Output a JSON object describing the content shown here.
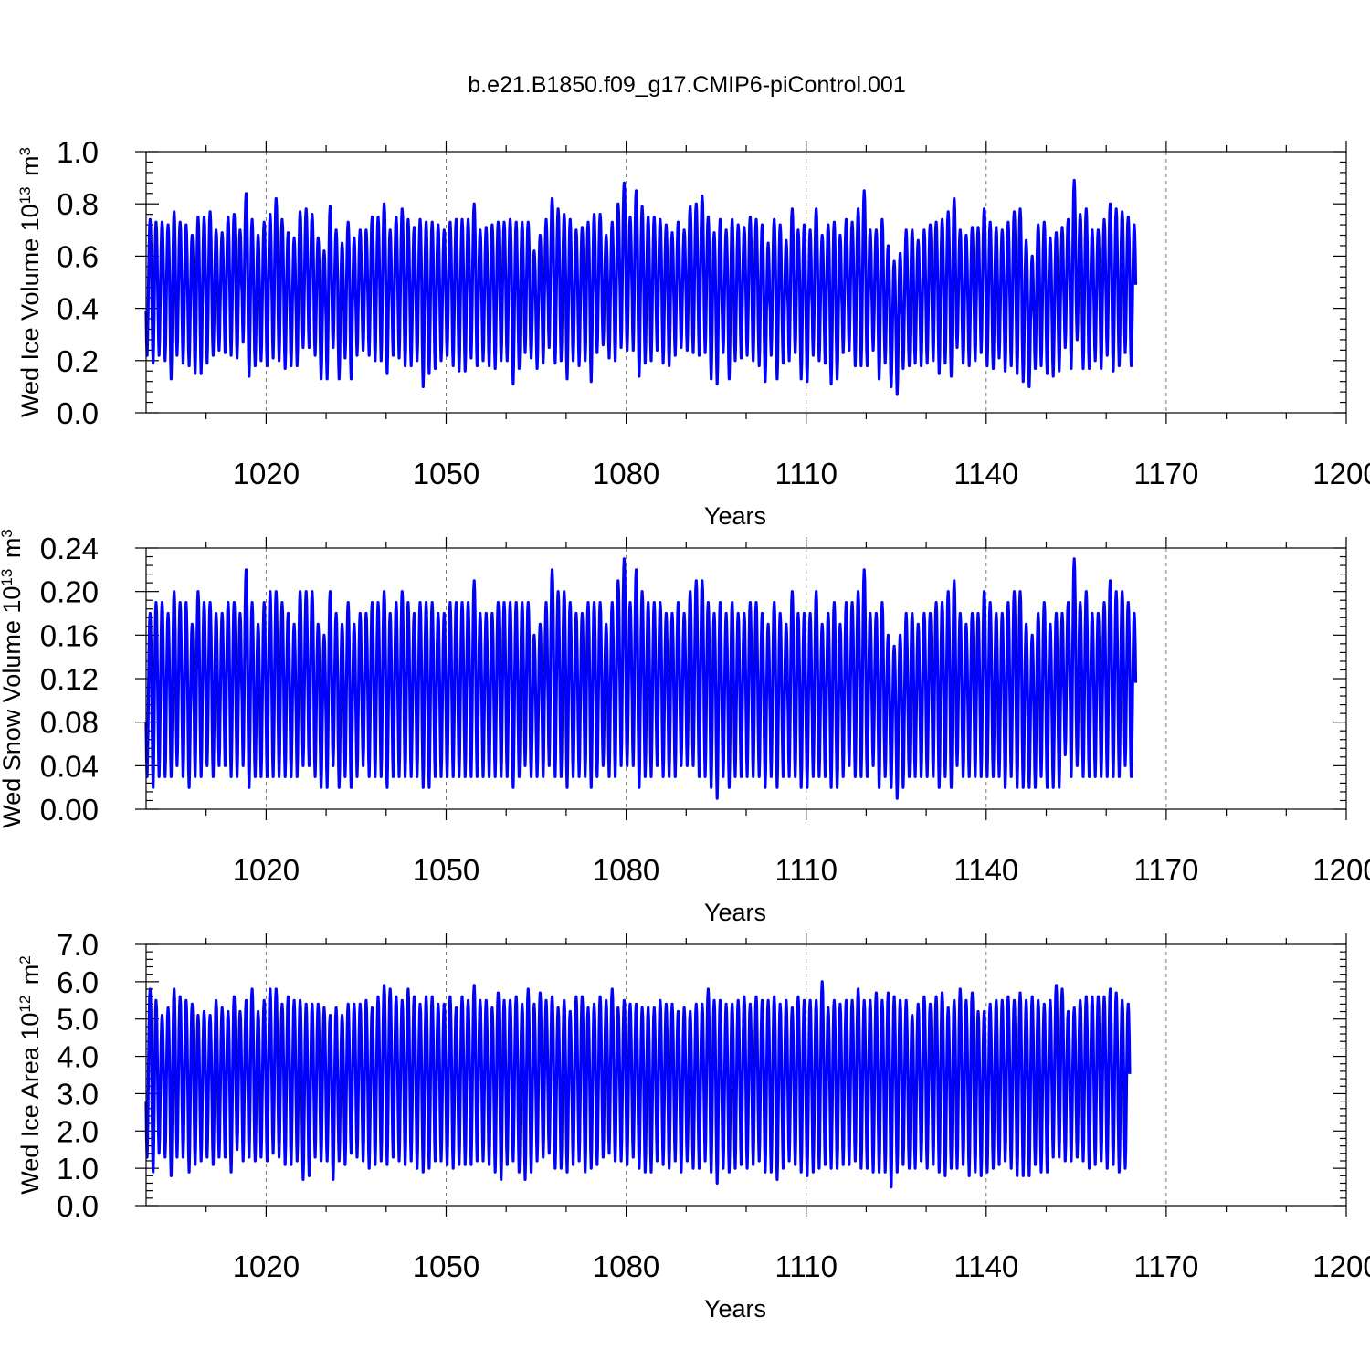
{
  "figure_title": "b.e21.B1850.f09_g17.CMIP6-piControl.001",
  "colors": {
    "series": "#0000ff",
    "frame": "#000000",
    "grid": "#777777"
  },
  "chart_data": [
    {
      "type": "line",
      "xlabel": "Years",
      "ylabel": {
        "text": "Wed Ice Volume 10",
        "sup": "13",
        "unit": " m",
        "unit_sup": "3"
      },
      "xlim": [
        1000,
        1200
      ],
      "ylim": [
        0.0,
        1.0
      ],
      "xticks": [
        1020,
        1050,
        1080,
        1110,
        1140,
        1170,
        1200
      ],
      "yticks": [
        "0.0",
        "0.2",
        "0.4",
        "0.6",
        "0.8",
        "1.0"
      ],
      "grid": "vertical dashed at x ticks",
      "series": [
        {
          "sampling": "monthly",
          "x_start": 1000,
          "annual_max": [
            0.74,
            0.73,
            0.73,
            0.72,
            0.77,
            0.73,
            0.72,
            0.68,
            0.75,
            0.75,
            0.77,
            0.7,
            0.69,
            0.75,
            0.76,
            0.7,
            0.84,
            0.74,
            0.68,
            0.73,
            0.76,
            0.82,
            0.74,
            0.69,
            0.67,
            0.77,
            0.78,
            0.76,
            0.67,
            0.62,
            0.79,
            0.7,
            0.65,
            0.73,
            0.67,
            0.7,
            0.7,
            0.75,
            0.75,
            0.8,
            0.7,
            0.75,
            0.78,
            0.74,
            0.71,
            0.74,
            0.73,
            0.73,
            0.72,
            0.7,
            0.73,
            0.74,
            0.74,
            0.74,
            0.8,
            0.7,
            0.71,
            0.72,
            0.73,
            0.73,
            0.74,
            0.73,
            0.73,
            0.73,
            0.62,
            0.68,
            0.74,
            0.82,
            0.78,
            0.76,
            0.74,
            0.7,
            0.71,
            0.73,
            0.76,
            0.76,
            0.68,
            0.73,
            0.8,
            0.88,
            0.75,
            0.85,
            0.79,
            0.75,
            0.75,
            0.74,
            0.72,
            0.69,
            0.73,
            0.7,
            0.79,
            0.8,
            0.83,
            0.75,
            0.69,
            0.74,
            0.7,
            0.74,
            0.72,
            0.71,
            0.75,
            0.74,
            0.72,
            0.65,
            0.74,
            0.72,
            0.66,
            0.78,
            0.7,
            0.72,
            0.7,
            0.78,
            0.68,
            0.72,
            0.73,
            0.68,
            0.74,
            0.73,
            0.78,
            0.85,
            0.7,
            0.7,
            0.74,
            0.64,
            0.58,
            0.61,
            0.7,
            0.7,
            0.66,
            0.7,
            0.72,
            0.73,
            0.74,
            0.77,
            0.82,
            0.7,
            0.68,
            0.71,
            0.71,
            0.78,
            0.73,
            0.71,
            0.7,
            0.73,
            0.77,
            0.78,
            0.66,
            0.6,
            0.72,
            0.73,
            0.67,
            0.69,
            0.71,
            0.74,
            0.89,
            0.76,
            0.78,
            0.7,
            0.7,
            0.74,
            0.8,
            0.78,
            0.77,
            0.75,
            0.72,
            0.7
          ],
          "annual_min": [
            0.22,
            0.19,
            0.22,
            0.2,
            0.13,
            0.22,
            0.19,
            0.18,
            0.15,
            0.15,
            0.19,
            0.22,
            0.24,
            0.23,
            0.22,
            0.21,
            0.27,
            0.14,
            0.18,
            0.2,
            0.18,
            0.21,
            0.2,
            0.17,
            0.18,
            0.18,
            0.25,
            0.25,
            0.22,
            0.13,
            0.13,
            0.25,
            0.13,
            0.21,
            0.13,
            0.22,
            0.24,
            0.22,
            0.2,
            0.2,
            0.15,
            0.22,
            0.21,
            0.18,
            0.18,
            0.2,
            0.1,
            0.15,
            0.17,
            0.2,
            0.22,
            0.18,
            0.16,
            0.16,
            0.21,
            0.18,
            0.2,
            0.18,
            0.17,
            0.2,
            0.2,
            0.11,
            0.17,
            0.23,
            0.21,
            0.17,
            0.19,
            0.25,
            0.19,
            0.2,
            0.13,
            0.2,
            0.18,
            0.2,
            0.12,
            0.23,
            0.26,
            0.21,
            0.2,
            0.25,
            0.24,
            0.24,
            0.14,
            0.19,
            0.2,
            0.24,
            0.19,
            0.18,
            0.22,
            0.25,
            0.24,
            0.23,
            0.22,
            0.23,
            0.13,
            0.11,
            0.23,
            0.13,
            0.2,
            0.21,
            0.22,
            0.2,
            0.18,
            0.12,
            0.22,
            0.13,
            0.19,
            0.2,
            0.23,
            0.13,
            0.12,
            0.22,
            0.2,
            0.19,
            0.11,
            0.13,
            0.23,
            0.24,
            0.18,
            0.18,
            0.18,
            0.24,
            0.13,
            0.19,
            0.1,
            0.07,
            0.17,
            0.18,
            0.19,
            0.18,
            0.19,
            0.2,
            0.15,
            0.19,
            0.14,
            0.25,
            0.19,
            0.18,
            0.2,
            0.23,
            0.18,
            0.17,
            0.21,
            0.16,
            0.18,
            0.15,
            0.12,
            0.1,
            0.17,
            0.18,
            0.15,
            0.14,
            0.16,
            0.25,
            0.17,
            0.28,
            0.17,
            0.17,
            0.2,
            0.17,
            0.22,
            0.16,
            0.18,
            0.23,
            0.18
          ]
        }
      ]
    },
    {
      "type": "line",
      "xlabel": "Years",
      "ylabel": {
        "text": "Wed Snow Volume 10",
        "sup": "13",
        "unit": " m",
        "unit_sup": "3"
      },
      "xlim": [
        1000,
        1200
      ],
      "ylim": [
        0.0,
        0.24
      ],
      "xticks": [
        1020,
        1050,
        1080,
        1110,
        1140,
        1170,
        1200
      ],
      "yticks": [
        "0.00",
        "0.04",
        "0.08",
        "0.12",
        "0.16",
        "0.20",
        "0.24"
      ],
      "grid": "vertical dashed at x ticks",
      "series": [
        {
          "sampling": "monthly",
          "x_start": 1000,
          "annual_max": [
            0.18,
            0.19,
            0.19,
            0.18,
            0.2,
            0.19,
            0.19,
            0.17,
            0.2,
            0.19,
            0.19,
            0.18,
            0.18,
            0.19,
            0.19,
            0.18,
            0.22,
            0.19,
            0.17,
            0.19,
            0.2,
            0.2,
            0.19,
            0.18,
            0.17,
            0.2,
            0.2,
            0.2,
            0.17,
            0.16,
            0.2,
            0.18,
            0.17,
            0.19,
            0.17,
            0.18,
            0.18,
            0.19,
            0.19,
            0.2,
            0.18,
            0.19,
            0.2,
            0.19,
            0.18,
            0.19,
            0.19,
            0.19,
            0.18,
            0.18,
            0.19,
            0.19,
            0.19,
            0.19,
            0.21,
            0.18,
            0.18,
            0.18,
            0.19,
            0.19,
            0.19,
            0.19,
            0.19,
            0.19,
            0.16,
            0.17,
            0.19,
            0.22,
            0.2,
            0.2,
            0.19,
            0.18,
            0.18,
            0.19,
            0.19,
            0.19,
            0.17,
            0.19,
            0.21,
            0.23,
            0.19,
            0.22,
            0.2,
            0.19,
            0.19,
            0.19,
            0.18,
            0.18,
            0.19,
            0.18,
            0.2,
            0.21,
            0.21,
            0.19,
            0.18,
            0.19,
            0.18,
            0.19,
            0.18,
            0.18,
            0.19,
            0.19,
            0.18,
            0.17,
            0.19,
            0.18,
            0.17,
            0.2,
            0.18,
            0.18,
            0.18,
            0.2,
            0.17,
            0.18,
            0.19,
            0.17,
            0.19,
            0.19,
            0.2,
            0.22,
            0.18,
            0.18,
            0.19,
            0.16,
            0.15,
            0.16,
            0.18,
            0.18,
            0.17,
            0.18,
            0.18,
            0.19,
            0.19,
            0.2,
            0.21,
            0.18,
            0.17,
            0.18,
            0.18,
            0.2,
            0.19,
            0.18,
            0.18,
            0.19,
            0.2,
            0.2,
            0.17,
            0.16,
            0.18,
            0.19,
            0.17,
            0.18,
            0.18,
            0.19,
            0.23,
            0.19,
            0.2,
            0.18,
            0.18,
            0.19,
            0.21,
            0.2,
            0.2,
            0.19,
            0.18,
            0.18
          ],
          "annual_min": [
            0.03,
            0.02,
            0.03,
            0.03,
            0.03,
            0.04,
            0.03,
            0.02,
            0.03,
            0.03,
            0.04,
            0.03,
            0.04,
            0.04,
            0.03,
            0.03,
            0.04,
            0.02,
            0.03,
            0.03,
            0.03,
            0.03,
            0.03,
            0.03,
            0.03,
            0.03,
            0.04,
            0.04,
            0.03,
            0.02,
            0.02,
            0.04,
            0.02,
            0.03,
            0.02,
            0.03,
            0.04,
            0.03,
            0.03,
            0.03,
            0.02,
            0.03,
            0.03,
            0.03,
            0.03,
            0.03,
            0.02,
            0.02,
            0.03,
            0.03,
            0.03,
            0.03,
            0.03,
            0.03,
            0.03,
            0.03,
            0.03,
            0.03,
            0.03,
            0.03,
            0.03,
            0.02,
            0.03,
            0.04,
            0.03,
            0.03,
            0.03,
            0.04,
            0.03,
            0.03,
            0.02,
            0.03,
            0.03,
            0.03,
            0.02,
            0.03,
            0.04,
            0.03,
            0.03,
            0.04,
            0.04,
            0.04,
            0.02,
            0.03,
            0.03,
            0.04,
            0.03,
            0.03,
            0.03,
            0.04,
            0.04,
            0.04,
            0.03,
            0.03,
            0.02,
            0.01,
            0.03,
            0.02,
            0.03,
            0.03,
            0.03,
            0.03,
            0.03,
            0.02,
            0.03,
            0.02,
            0.03,
            0.03,
            0.03,
            0.02,
            0.02,
            0.03,
            0.03,
            0.03,
            0.02,
            0.02,
            0.03,
            0.04,
            0.03,
            0.03,
            0.03,
            0.04,
            0.02,
            0.03,
            0.02,
            0.01,
            0.02,
            0.03,
            0.03,
            0.03,
            0.03,
            0.03,
            0.02,
            0.03,
            0.02,
            0.04,
            0.03,
            0.03,
            0.03,
            0.03,
            0.03,
            0.03,
            0.03,
            0.02,
            0.03,
            0.02,
            0.02,
            0.02,
            0.02,
            0.03,
            0.02,
            0.02,
            0.02,
            0.05,
            0.03,
            0.04,
            0.03,
            0.03,
            0.03,
            0.03,
            0.03,
            0.03,
            0.03,
            0.04,
            0.03
          ]
        }
      ]
    },
    {
      "type": "line",
      "xlabel": "Years",
      "ylabel": {
        "text": "Wed Ice Area 10",
        "sup": "12",
        "unit": " m",
        "unit_sup": "2"
      },
      "xlim": [
        1000,
        1200
      ],
      "ylim": [
        0.0,
        7.0
      ],
      "xticks": [
        1020,
        1050,
        1080,
        1110,
        1140,
        1170,
        1200
      ],
      "yticks": [
        "0.0",
        "1.0",
        "2.0",
        "3.0",
        "4.0",
        "5.0",
        "6.0",
        "7.0"
      ],
      "grid": "vertical dashed at x ticks",
      "series": [
        {
          "sampling": "monthly",
          "x_start": 1000,
          "annual_max": [
            5.8,
            5.5,
            5.1,
            5.3,
            5.8,
            5.6,
            5.5,
            5.4,
            5.1,
            5.2,
            5.1,
            5.5,
            5.3,
            5.2,
            5.6,
            5.2,
            5.5,
            5.8,
            5.2,
            5.5,
            5.8,
            5.8,
            5.4,
            5.6,
            5.5,
            5.5,
            5.4,
            5.4,
            5.4,
            5.3,
            5.1,
            5.3,
            5.1,
            5.4,
            5.4,
            5.4,
            5.5,
            5.3,
            5.6,
            5.9,
            5.8,
            5.6,
            5.5,
            5.8,
            5.6,
            5.4,
            5.6,
            5.6,
            5.4,
            5.4,
            5.6,
            5.3,
            5.6,
            5.5,
            5.9,
            5.5,
            5.5,
            5.3,
            5.7,
            5.5,
            5.5,
            5.6,
            5.4,
            5.8,
            5.4,
            5.7,
            5.5,
            5.6,
            5.3,
            5.5,
            5.2,
            5.6,
            5.6,
            5.3,
            5.4,
            5.6,
            5.5,
            5.8,
            5.3,
            5.5,
            5.4,
            5.4,
            5.3,
            5.3,
            5.3,
            5.5,
            5.4,
            5.4,
            5.2,
            5.3,
            5.2,
            5.4,
            5.4,
            5.8,
            5.5,
            5.5,
            5.4,
            5.4,
            5.5,
            5.6,
            5.4,
            5.6,
            5.5,
            5.5,
            5.6,
            5.4,
            5.5,
            5.3,
            5.6,
            5.5,
            5.5,
            5.5,
            6.0,
            5.3,
            5.5,
            5.4,
            5.5,
            5.5,
            5.8,
            5.5,
            5.5,
            5.7,
            5.5,
            5.7,
            5.6,
            5.5,
            5.5,
            5.1,
            5.4,
            5.6,
            5.4,
            5.6,
            5.7,
            5.3,
            5.5,
            5.8,
            5.5,
            5.7,
            5.2,
            5.2,
            5.4,
            5.5,
            5.5,
            5.6,
            5.5,
            5.7,
            5.5,
            5.6,
            5.5,
            5.4,
            5.5,
            5.9,
            5.8,
            5.2,
            5.3,
            5.5,
            5.6,
            5.6,
            5.6,
            5.6,
            5.8,
            5.7,
            5.5,
            5.4,
            5.8,
            5.5
          ],
          "annual_min": [
            1.3,
            0.9,
            1.4,
            1.3,
            0.8,
            1.3,
            1.3,
            0.9,
            1.1,
            1.2,
            1.3,
            1.1,
            1.3,
            1.3,
            0.9,
            1.5,
            1.2,
            1.3,
            1.2,
            1.3,
            1.2,
            1.4,
            1.3,
            1.1,
            1.1,
            1.2,
            0.7,
            0.8,
            1.3,
            1.2,
            1.2,
            0.7,
            1.2,
            1.1,
            1.4,
            1.3,
            1.2,
            1.0,
            1.1,
            1.2,
            1.1,
            1.3,
            1.2,
            1.1,
            1.2,
            1.0,
            0.9,
            1.0,
            1.2,
            1.2,
            1.1,
            1.0,
            1.1,
            1.1,
            1.1,
            1.2,
            1.2,
            1.1,
            0.9,
            0.7,
            1.1,
            1.2,
            0.9,
            0.7,
            0.9,
            1.2,
            1.3,
            1.4,
            1.0,
            1.0,
            0.9,
            1.1,
            1.2,
            0.9,
            1.0,
            1.1,
            1.3,
            1.4,
            1.2,
            1.2,
            1.1,
            1.3,
            1.0,
            0.9,
            0.9,
            1.2,
            1.1,
            1.0,
            1.2,
            0.9,
            1.2,
            1.0,
            1.0,
            1.2,
            0.9,
            0.6,
            1.0,
            0.9,
            1.0,
            1.1,
            1.0,
            1.1,
            1.2,
            0.9,
            0.9,
            0.7,
            1.0,
            1.2,
            1.1,
            0.9,
            0.8,
            0.9,
            1.0,
            1.1,
            1.0,
            1.0,
            1.1,
            1.1,
            1.2,
            1.0,
            1.0,
            0.9,
            0.9,
            0.9,
            0.5,
            0.9,
            1.1,
            1.0,
            1.0,
            1.2,
            1.0,
            1.1,
            0.9,
            0.8,
            1.0,
            1.0,
            1.1,
            0.8,
            0.9,
            0.8,
            0.9,
            1.0,
            1.1,
            1.2,
            1.0,
            0.8,
            0.8,
            0.8,
            1.1,
            0.9,
            0.9,
            1.3,
            1.3,
            1.2,
            1.2,
            1.3,
            1.2,
            1.0,
            1.1,
            1.2,
            1.0,
            1.1,
            0.9,
            1.0
          ]
        }
      ]
    }
  ]
}
